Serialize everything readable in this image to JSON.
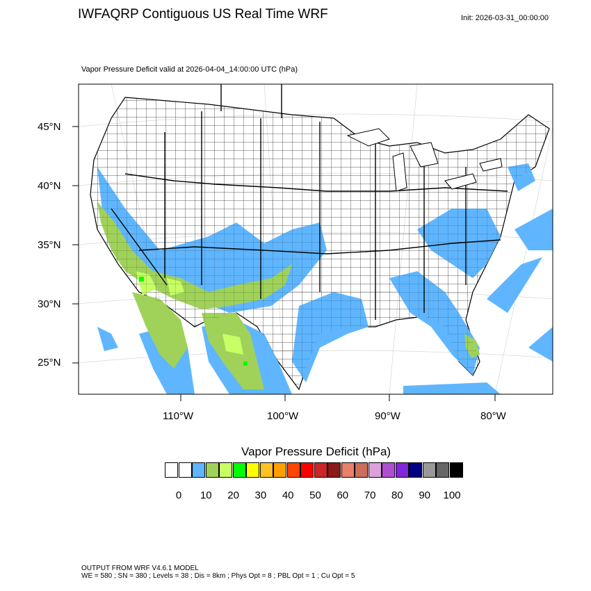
{
  "header": {
    "title": "IWFAQRP Contiguous US Real Time WRF",
    "init": "Init: 2026-03-31_00:00:00",
    "subtitle": "Vapor Pressure Deficit valid at 2026-04-04_14:00:00 UTC   (hPa)"
  },
  "map": {
    "lat_labels": [
      "45°N",
      "40°N",
      "35°N",
      "30°N",
      "25°N"
    ],
    "lon_labels": [
      "110°W",
      "100°W",
      "90°W",
      "80°W"
    ],
    "colors": {
      "ocean_shade": "#5fb6ff",
      "land_low": "#5fb6ff",
      "land_mid": "#a0d25a",
      "land_high": "#c8ff64",
      "green": "#00ff00",
      "border": "#000000",
      "county": "#000000"
    }
  },
  "colorbar": {
    "title": "Vapor Pressure Deficit  (hPa)",
    "colors": [
      "#ffffff",
      "#ffffff",
      "#5fb6ff",
      "#a0d25a",
      "#c8ff64",
      "#00ff00",
      "#ffff00",
      "#ffc125",
      "#ff9f00",
      "#ff4500",
      "#ff0000",
      "#cd2626",
      "#8b1a1a",
      "#e9806b",
      "#cd6e5a",
      "#dda0dd",
      "#b04ed0",
      "#7f27d9",
      "#000080",
      "#999999",
      "#666666",
      "#000000"
    ],
    "labels": [
      "0",
      "10",
      "20",
      "30",
      "40",
      "50",
      "60",
      "70",
      "80",
      "90",
      "100"
    ]
  },
  "footer": {
    "line1": "OUTPUT FROM WRF V4.6.1 MODEL",
    "line2": "WE = 580 ; SN = 380 ; Levels = 38 ; Dis = 8km ; Phys Opt = 8 ; PBL Opt = 1 ; Cu Opt = 5"
  }
}
